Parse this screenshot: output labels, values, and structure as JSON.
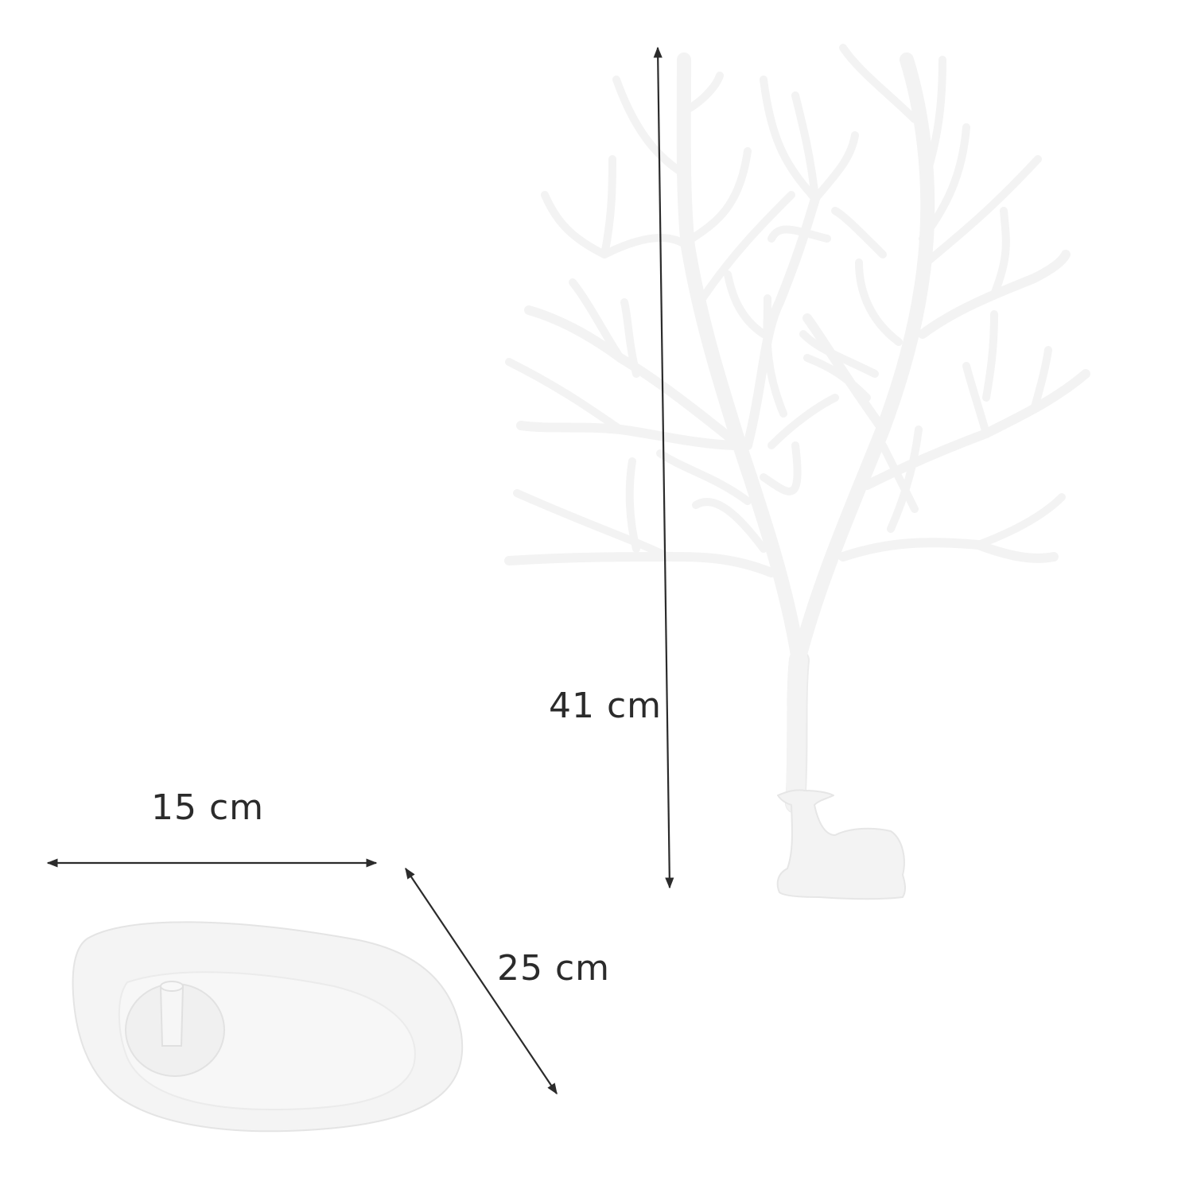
{
  "dimensions": {
    "height": "41 cm",
    "width": "15 cm",
    "depth": "25 cm"
  },
  "colors": {
    "background": "#ffffff",
    "product": "#f3f3f3",
    "product_edge": "#e4e4e4",
    "dimension_line": "#2b2b2b"
  },
  "icons": {
    "tree": "deer-antler-tree-stand-icon",
    "deer": "resting-deer-figure-icon",
    "tray": "oval-base-tray-icon"
  }
}
